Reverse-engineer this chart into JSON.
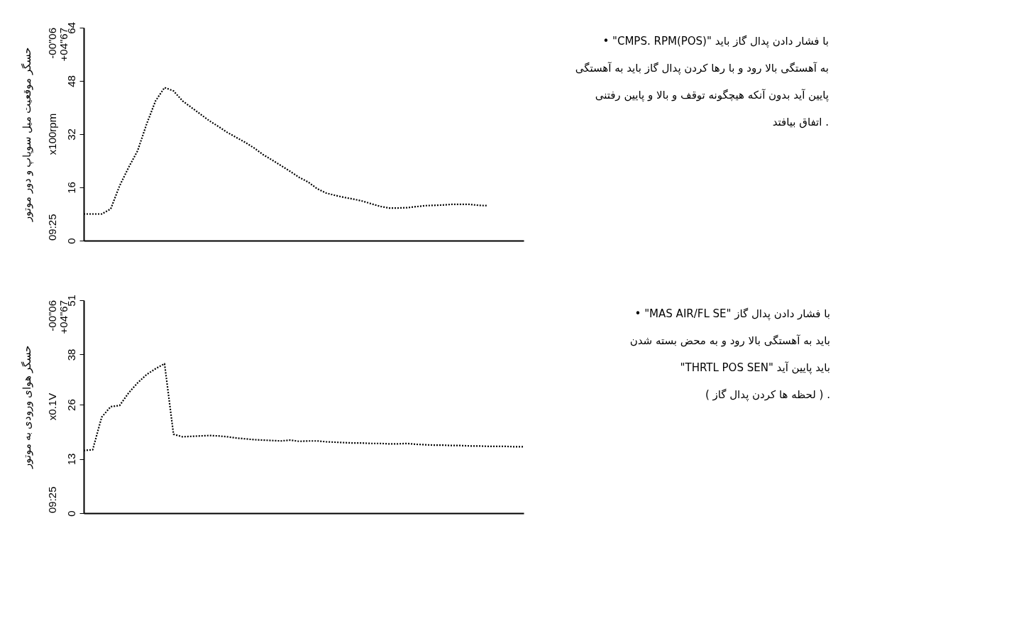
{
  "chart_data": [
    {
      "type": "line",
      "ylabel": "حسگر موقعیت میل سوپاپ و دور موتور",
      "line_style": "dotted",
      "marker": "none",
      "grid": false,
      "tick_labels": "y",
      "categories": [
        null,
        null,
        null,
        null,
        null,
        null,
        null,
        null,
        null,
        null,
        null,
        null,
        null,
        null,
        null,
        null,
        null,
        null,
        null,
        null,
        null,
        null,
        null,
        null,
        null,
        null,
        null,
        null,
        null,
        null,
        null,
        null,
        null,
        null,
        null,
        null,
        null,
        null,
        null,
        null,
        null,
        null,
        null,
        null,
        null,
        null,
        null,
        null,
        null,
        null
      ],
      "series": [
        {
          "color": "#000000",
          "values": [
            8,
            8,
            8,
            9.5,
            16.5,
            22,
            27,
            35,
            42,
            46,
            45,
            42,
            40,
            38,
            36,
            34.3,
            32.5,
            31,
            29.5,
            27.8,
            25.8,
            24.2,
            22.5,
            20.8,
            19,
            17.6,
            15.6,
            14.3,
            13.6,
            13,
            12.5,
            11.9,
            11.1,
            10.3,
            9.8,
            9.8,
            9.9,
            10.2,
            10.5,
            10.6,
            10.7,
            10.9,
            10.9,
            10.9,
            10.6,
            10.5,
            null,
            null,
            null,
            null
          ]
        }
      ],
      "ylim": [
        0,
        64
      ],
      "yticks": [
        0,
        16,
        32,
        48,
        64
      ],
      "annotations": [
        "-00\"06",
        "+04\"67",
        "x100rpm",
        "09:25",
        "• \"CMPS. RPM(POS)\" با فشار دادن پدال گاز باید",
        "به آهستگی بالا رود و با رها کردن پدال گاز باید به آهستگی",
        "پایین آید بدون آنکه هیچگونه توقف و بالا و پایین رفتنی",
        "اتفاق بیافتد ."
      ]
    },
    {
      "type": "line",
      "ylabel": "حسگر هوای ورودی به موتور",
      "line_style": "dotted",
      "marker": "none",
      "grid": false,
      "tick_labels": "y",
      "categories": [
        null,
        null,
        null,
        null,
        null,
        null,
        null,
        null,
        null,
        null,
        null,
        null,
        null,
        null,
        null,
        null,
        null,
        null,
        null,
        null,
        null,
        null,
        null,
        null,
        null,
        null,
        null,
        null,
        null,
        null,
        null,
        null,
        null,
        null,
        null,
        null,
        null,
        null,
        null,
        null,
        null,
        null,
        null,
        null,
        null,
        null,
        null,
        null,
        null,
        null
      ],
      "series": [
        {
          "color": "#000000",
          "values": [
            15,
            15.2,
            23,
            25.5,
            25.8,
            28.8,
            31.2,
            33.2,
            34.6,
            35.8,
            18.9,
            18.3,
            18.4,
            18.5,
            18.6,
            18.5,
            18.3,
            18,
            17.8,
            17.6,
            17.5,
            17.4,
            17.3,
            17.5,
            17.2,
            17.3,
            17.3,
            17.1,
            17,
            16.9,
            16.8,
            16.8,
            16.7,
            16.7,
            16.6,
            16.6,
            16.7,
            16.5,
            16.4,
            16.3,
            16.3,
            16.2,
            16.2,
            16.1,
            16.1,
            16,
            16,
            16,
            15.9,
            15.9
          ]
        }
      ],
      "ylim": [
        0,
        51
      ],
      "yticks": [
        0,
        13,
        26,
        38,
        51
      ],
      "annotations": [
        "-00\"06",
        "+04\"67",
        "x0.1V",
        "09:25",
        "• \"MAS AIR/FL SE\" با فشار دادن پدال گاز",
        "باید به آهستگی بالا رود و به محض بسته شدن",
        "\"THRTL POS SEN\" باید پایین آید",
        "( لحظه ها کردن پدال گاز ) ."
      ]
    }
  ]
}
